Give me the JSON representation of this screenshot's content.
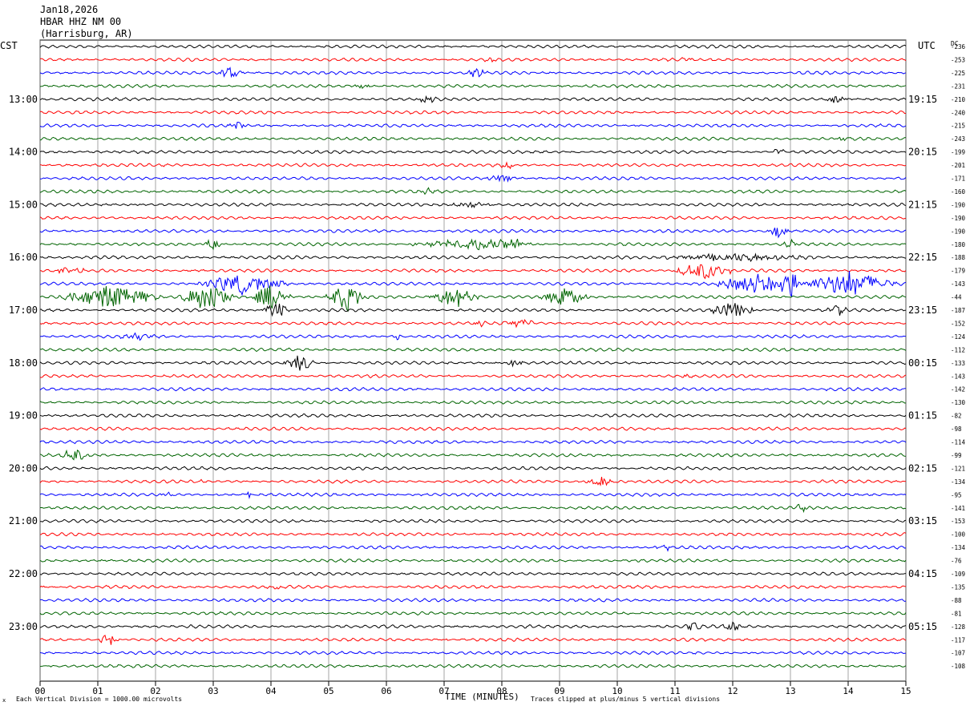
{
  "header": {
    "date": "Jan18,2026",
    "station": "HBAR HHZ NM 00",
    "location": "(Harrisburg, AR)"
  },
  "left_axis_label": "CST",
  "right_axis_label": "UTC",
  "dc_label": "DC",
  "footer": {
    "x_axis_title": "TIME (MINUTES)",
    "scale_note": "Each Vertical Division = 1000.00 microvolts",
    "clip_note": "Traces clipped at plus/minus 5 vertical divisions",
    "corner_mark": "x"
  },
  "colors": {
    "trace_cycle": [
      "#000000",
      "#ff0000",
      "#0000ff",
      "#006400"
    ],
    "grid": "#808080",
    "background": "#ffffff"
  },
  "chart_data": {
    "type": "line",
    "title": "HBAR HHZ NM 00",
    "x_axis": {
      "label": "TIME (MINUTES)",
      "range": [
        0,
        15
      ],
      "ticks": [
        "00",
        "01",
        "02",
        "03",
        "04",
        "05",
        "06",
        "07",
        "08",
        "09",
        "10",
        "11",
        "12",
        "13",
        "14",
        "15"
      ]
    },
    "rows_per_hour": 4,
    "row_count": 48,
    "left_hour_labels": [
      {
        "row": 4,
        "text": "13:00"
      },
      {
        "row": 8,
        "text": "14:00"
      },
      {
        "row": 12,
        "text": "15:00"
      },
      {
        "row": 16,
        "text": "16:00"
      },
      {
        "row": 20,
        "text": "17:00"
      },
      {
        "row": 24,
        "text": "18:00"
      },
      {
        "row": 28,
        "text": "19:00"
      },
      {
        "row": 32,
        "text": "20:00"
      },
      {
        "row": 36,
        "text": "21:00"
      },
      {
        "row": 40,
        "text": "22:00"
      },
      {
        "row": 44,
        "text": "23:00"
      }
    ],
    "right_hour_labels": [
      {
        "row": 4,
        "text": "19:15"
      },
      {
        "row": 8,
        "text": "20:15"
      },
      {
        "row": 12,
        "text": "21:15"
      },
      {
        "row": 16,
        "text": "22:15"
      },
      {
        "row": 20,
        "text": "23:15"
      },
      {
        "row": 24,
        "text": "00:15"
      },
      {
        "row": 28,
        "text": "01:15"
      },
      {
        "row": 32,
        "text": "02:15"
      },
      {
        "row": 36,
        "text": "03:15"
      },
      {
        "row": 40,
        "text": "04:15"
      },
      {
        "row": 44,
        "text": "05:15"
      }
    ],
    "dc_offsets": [
      "-236",
      "-253",
      "-225",
      "-231",
      "-210",
      "-240",
      "-215",
      "-243",
      "-199",
      "-201",
      "-171",
      "-160",
      "-190",
      "-190",
      "-190",
      "-180",
      "-188",
      "-179",
      "-143",
      "-44",
      "-187",
      "-152",
      "-124",
      "-112",
      "-133",
      "-143",
      "-142",
      "-130",
      "-82",
      "-98",
      "-114",
      "-99",
      "-121",
      "-134",
      "-95",
      "-141",
      "-153",
      "-100",
      "-134",
      "-76",
      "-109",
      "-135",
      "-88",
      "-81",
      "-128",
      "-117",
      "-107",
      "-108"
    ],
    "events": [
      {
        "row": 1,
        "minute": 7.8,
        "amp": 0.4,
        "dur": 0.3
      },
      {
        "row": 1,
        "minute": 11.2,
        "amp": 0.4,
        "dur": 0.2
      },
      {
        "row": 2,
        "minute": 3.3,
        "amp": 1.0,
        "dur": 0.5
      },
      {
        "row": 2,
        "minute": 7.6,
        "amp": 0.8,
        "dur": 0.5
      },
      {
        "row": 3,
        "minute": 5.6,
        "amp": 0.4,
        "dur": 0.4
      },
      {
        "row": 4,
        "minute": 6.7,
        "amp": 0.7,
        "dur": 0.4
      },
      {
        "row": 4,
        "minute": 13.8,
        "amp": 0.9,
        "dur": 0.4
      },
      {
        "row": 6,
        "minute": 3.4,
        "amp": 0.6,
        "dur": 0.4
      },
      {
        "row": 7,
        "minute": 13.9,
        "amp": 0.5,
        "dur": 0.4
      },
      {
        "row": 8,
        "minute": 12.8,
        "amp": 0.4,
        "dur": 0.4
      },
      {
        "row": 9,
        "minute": 8.1,
        "amp": 0.5,
        "dur": 0.4
      },
      {
        "row": 10,
        "minute": 8.0,
        "amp": 0.6,
        "dur": 0.6
      },
      {
        "row": 11,
        "minute": 6.7,
        "amp": 0.5,
        "dur": 0.4
      },
      {
        "row": 12,
        "minute": 7.5,
        "amp": 0.5,
        "dur": 1.0
      },
      {
        "row": 14,
        "minute": 12.8,
        "amp": 1.2,
        "dur": 0.4
      },
      {
        "row": 15,
        "minute": 3.0,
        "amp": 0.8,
        "dur": 0.4
      },
      {
        "row": 15,
        "minute": 7.5,
        "amp": 0.8,
        "dur": 2.5
      },
      {
        "row": 15,
        "minute": 8.2,
        "amp": 1.2,
        "dur": 0.6
      },
      {
        "row": 15,
        "minute": 13.0,
        "amp": 1.0,
        "dur": 0.3
      },
      {
        "row": 16,
        "minute": 12.0,
        "amp": 0.6,
        "dur": 3.0
      },
      {
        "row": 17,
        "minute": 11.5,
        "amp": 1.4,
        "dur": 1.2
      },
      {
        "row": 17,
        "minute": 0.5,
        "amp": 0.5,
        "dur": 1.0
      },
      {
        "row": 18,
        "minute": 3.5,
        "amp": 1.5,
        "dur": 1.8
      },
      {
        "row": 18,
        "minute": 12.4,
        "amp": 1.5,
        "dur": 1.6
      },
      {
        "row": 18,
        "minute": 14.0,
        "amp": 2.0,
        "dur": 1.8
      },
      {
        "row": 18,
        "minute": 13.0,
        "amp": 2.6,
        "dur": 0.4
      },
      {
        "row": 19,
        "minute": 1.2,
        "amp": 1.8,
        "dur": 2.0
      },
      {
        "row": 19,
        "minute": 2.9,
        "amp": 2.6,
        "dur": 1.0
      },
      {
        "row": 19,
        "minute": 4.0,
        "amp": 2.0,
        "dur": 0.8
      },
      {
        "row": 19,
        "minute": 5.3,
        "amp": 2.2,
        "dur": 0.8
      },
      {
        "row": 19,
        "minute": 7.2,
        "amp": 1.6,
        "dur": 1.0
      },
      {
        "row": 19,
        "minute": 9.1,
        "amp": 1.4,
        "dur": 1.0
      },
      {
        "row": 20,
        "minute": 4.1,
        "amp": 1.3,
        "dur": 0.6
      },
      {
        "row": 20,
        "minute": 12.0,
        "amp": 1.2,
        "dur": 1.0
      },
      {
        "row": 20,
        "minute": 13.8,
        "amp": 1.0,
        "dur": 0.4
      },
      {
        "row": 21,
        "minute": 8.3,
        "amp": 0.8,
        "dur": 0.6
      },
      {
        "row": 21,
        "minute": 7.6,
        "amp": 0.5,
        "dur": 0.3
      },
      {
        "row": 22,
        "minute": 1.7,
        "amp": 0.5,
        "dur": 0.8
      },
      {
        "row": 22,
        "minute": 6.2,
        "amp": 0.5,
        "dur": 0.2
      },
      {
        "row": 24,
        "minute": 4.5,
        "amp": 1.3,
        "dur": 0.6
      },
      {
        "row": 24,
        "minute": 8.2,
        "amp": 0.6,
        "dur": 0.4
      },
      {
        "row": 25,
        "minute": 11.3,
        "amp": 0.4,
        "dur": 0.4
      },
      {
        "row": 31,
        "minute": 0.6,
        "amp": 1.0,
        "dur": 0.6
      },
      {
        "row": 33,
        "minute": 9.7,
        "amp": 0.9,
        "dur": 0.6
      },
      {
        "row": 33,
        "minute": 2.8,
        "amp": 0.4,
        "dur": 0.3
      },
      {
        "row": 34,
        "minute": 2.2,
        "amp": 0.4,
        "dur": 0.4
      },
      {
        "row": 34,
        "minute": 3.6,
        "amp": 0.9,
        "dur": 0.1
      },
      {
        "row": 35,
        "minute": 13.2,
        "amp": 0.7,
        "dur": 0.4
      },
      {
        "row": 38,
        "minute": 10.8,
        "amp": 0.8,
        "dur": 0.3
      },
      {
        "row": 41,
        "minute": 4.1,
        "amp": 0.4,
        "dur": 0.4
      },
      {
        "row": 44,
        "minute": 11.3,
        "amp": 0.6,
        "dur": 0.4
      },
      {
        "row": 44,
        "minute": 12.0,
        "amp": 0.8,
        "dur": 0.4
      },
      {
        "row": 45,
        "minute": 1.2,
        "amp": 0.9,
        "dur": 0.5
      }
    ]
  }
}
